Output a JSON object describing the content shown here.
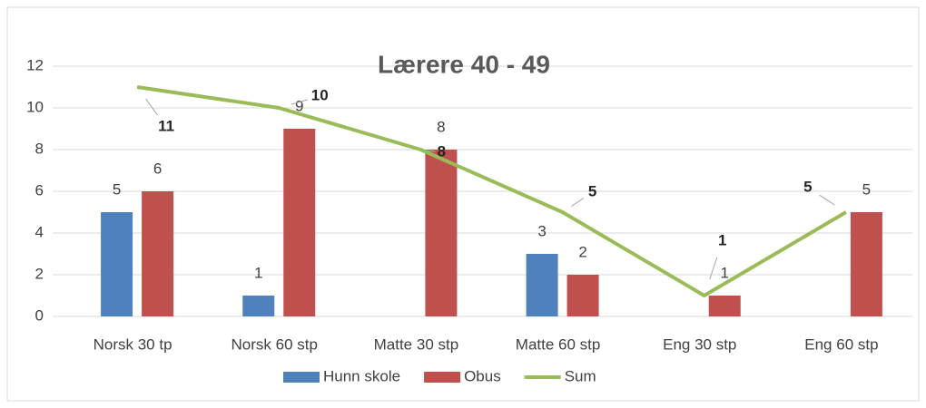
{
  "chart_data": {
    "type": "bar",
    "title": "Lærere 40 - 49",
    "categories": [
      "Norsk 30 tp",
      "Norsk 60 stp",
      "Matte 30 stp",
      "Matte 60 stp",
      "Eng 30 stp",
      "Eng 60 stp"
    ],
    "series": [
      {
        "name": "Hunn skole",
        "color": "#4f81bd",
        "type": "bar",
        "values": [
          5,
          1,
          null,
          3,
          null,
          null
        ]
      },
      {
        "name": "Obus",
        "color": "#c0504d",
        "type": "bar",
        "values": [
          6,
          9,
          8,
          2,
          1,
          5
        ]
      },
      {
        "name": "Sum",
        "color": "#9bbb59",
        "type": "line",
        "values": [
          11,
          10,
          8,
          5,
          1,
          5
        ]
      }
    ],
    "ylim": [
      0,
      12
    ],
    "yticks": [
      0,
      2,
      4,
      6,
      8,
      10,
      12
    ],
    "grid": true,
    "legend": "bottom"
  }
}
